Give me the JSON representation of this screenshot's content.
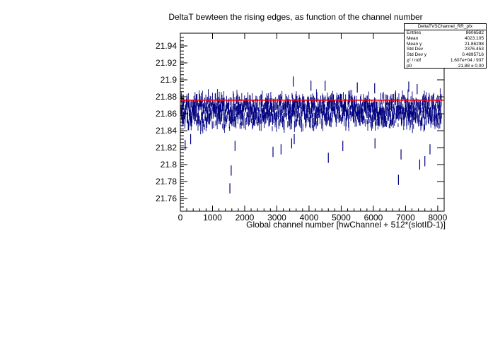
{
  "chart_data": {
    "type": "profile",
    "title": "DeltaT bewteen the rising edges, as function of the channel number",
    "xlabel": "Global channel number [hwChannel + 512*(slotID-1)]",
    "ylabel": "",
    "xlim": [
      0,
      8200
    ],
    "ylim": [
      21.745,
      21.955
    ],
    "x_ticks": [
      "0",
      "1000",
      "2000",
      "3000",
      "4000",
      "5000",
      "6000",
      "7000",
      "8000"
    ],
    "y_ticks": [
      "21.76",
      "21.78",
      "21.8",
      "21.82",
      "21.84",
      "21.86",
      "21.88",
      "21.9",
      "21.92",
      "21.94"
    ],
    "series": [
      {
        "style": "profile-points-with-error-bars",
        "color": "#000080",
        "n_bins": 8192,
        "typical_y_range": [
          21.835,
          21.89
        ],
        "mean_y": 21.86298,
        "outliers": [
          {
            "x": 150,
            "y": 21.823
          },
          {
            "x": 320,
            "y": 21.83
          },
          {
            "x": 1540,
            "y": 21.772
          },
          {
            "x": 1580,
            "y": 21.793
          },
          {
            "x": 1700,
            "y": 21.822
          },
          {
            "x": 2880,
            "y": 21.815
          },
          {
            "x": 3130,
            "y": 21.818
          },
          {
            "x": 3460,
            "y": 21.825
          },
          {
            "x": 3540,
            "y": 21.83
          },
          {
            "x": 4600,
            "y": 21.808
          },
          {
            "x": 5050,
            "y": 21.822
          },
          {
            "x": 6050,
            "y": 21.825
          },
          {
            "x": 6780,
            "y": 21.782
          },
          {
            "x": 6860,
            "y": 21.812
          },
          {
            "x": 7440,
            "y": 21.8
          },
          {
            "x": 7600,
            "y": 21.804
          },
          {
            "x": 7760,
            "y": 21.818
          },
          {
            "x": 3510,
            "y": 21.898
          },
          {
            "x": 4060,
            "y": 21.893
          },
          {
            "x": 4500,
            "y": 21.893
          },
          {
            "x": 5500,
            "y": 21.891
          },
          {
            "x": 6040,
            "y": 21.89
          },
          {
            "x": 7100,
            "y": 21.892
          },
          {
            "x": 7360,
            "y": 21.889
          }
        ]
      },
      {
        "style": "fit-line",
        "color": "#ff0000",
        "y": 21.876
      }
    ]
  },
  "stats": {
    "title": "DeltaTVSChannel_RR_pfx",
    "rows": [
      {
        "label": "Entries",
        "value": "8606582"
      },
      {
        "label": "Mean",
        "value": "4023.105"
      },
      {
        "label": "Mean y",
        "value": "21.86298"
      },
      {
        "label": "Std Dev",
        "value": "2376.453"
      },
      {
        "label": "Std Dev y",
        "value": "0.4895716"
      },
      {
        "label": "χ² / ndf",
        "value": "1.607e+04 / 937"
      },
      {
        "label": "p0",
        "value": "21.88 ± 0.00"
      }
    ]
  }
}
